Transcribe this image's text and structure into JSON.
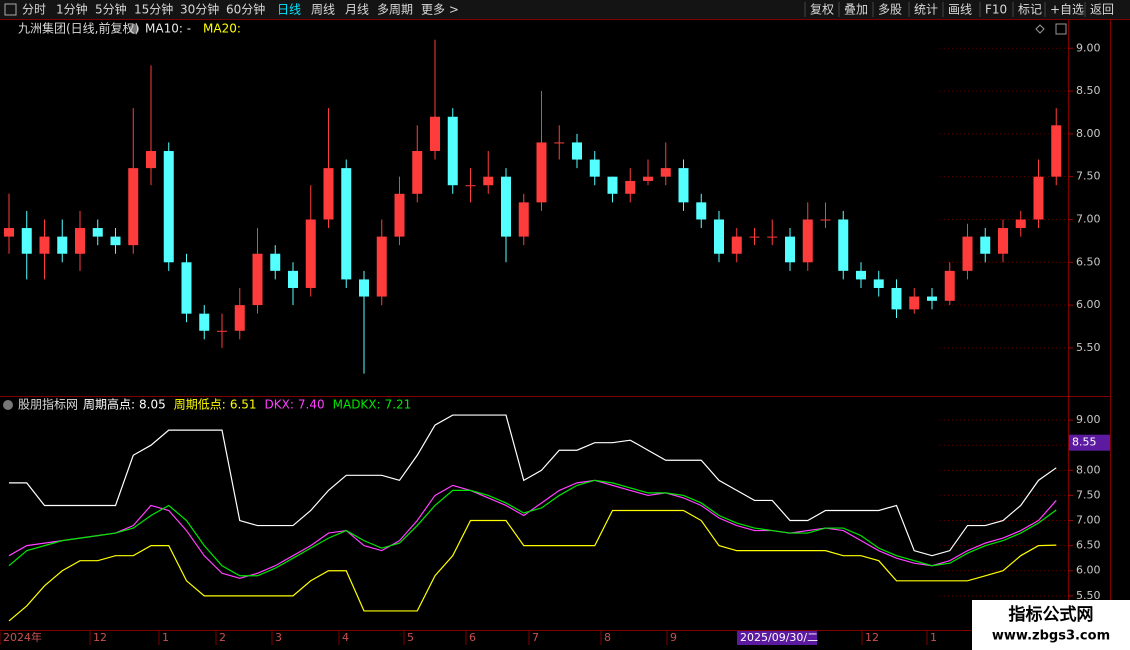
{
  "toolbar": {
    "left": [
      "分时",
      "1分钟",
      "5分钟",
      "15分钟",
      "30分钟",
      "60分钟",
      "日线",
      "周线",
      "月线",
      "多周期",
      "更多 >"
    ],
    "active": 6,
    "right": [
      "复权",
      "叠加",
      "多股",
      "统计",
      "画线",
      "F10",
      "标记",
      "+自选",
      "返回"
    ]
  },
  "chart_data": [
    {
      "type": "candlestick",
      "title": "九洲集团(日线,前复权)",
      "legend": [
        "MA10: -",
        "MA20:"
      ],
      "legend_colors": [
        "#e8e8e8",
        "#ffff00"
      ],
      "up_color": "#ff3c3c",
      "down_color": "#54ffff",
      "open": [
        6.8,
        6.9,
        6.6,
        6.8,
        6.6,
        6.9,
        6.8,
        6.7,
        7.6,
        7.8,
        6.5,
        5.9,
        5.7,
        5.7,
        6.0,
        6.6,
        6.4,
        6.2,
        7.0,
        7.6,
        6.3,
        6.1,
        6.8,
        7.3,
        7.8,
        8.2,
        7.4,
        7.4,
        7.5,
        6.8,
        7.2,
        7.9,
        7.9,
        7.7,
        7.5,
        7.3,
        7.45,
        7.5,
        7.6,
        7.2,
        7.0,
        6.6,
        6.8,
        6.8,
        6.8,
        6.5,
        7.0,
        7.0,
        6.4,
        6.3,
        6.2,
        5.95,
        6.1,
        6.05,
        6.4,
        6.8,
        6.6,
        6.9,
        7.0,
        7.5
      ],
      "high": [
        7.3,
        7.1,
        7.0,
        7.0,
        7.1,
        7.0,
        6.9,
        8.3,
        8.8,
        7.9,
        6.6,
        6.0,
        5.9,
        6.2,
        6.9,
        6.7,
        6.5,
        7.4,
        8.3,
        7.7,
        6.4,
        7.0,
        7.5,
        8.1,
        9.1,
        8.3,
        7.6,
        7.8,
        7.6,
        7.3,
        8.5,
        8.1,
        8.0,
        7.8,
        7.5,
        7.6,
        7.7,
        7.9,
        7.7,
        7.3,
        7.1,
        6.9,
        6.9,
        7.0,
        6.9,
        7.2,
        7.2,
        7.1,
        6.5,
        6.4,
        6.3,
        6.2,
        6.2,
        6.5,
        6.95,
        6.9,
        7.0,
        7.1,
        7.7,
        8.3
      ],
      "low": [
        6.6,
        6.3,
        6.3,
        6.5,
        6.4,
        6.7,
        6.6,
        6.6,
        7.4,
        6.4,
        5.8,
        5.6,
        5.5,
        5.6,
        5.9,
        6.3,
        6.0,
        6.1,
        6.9,
        6.2,
        5.2,
        6.0,
        6.7,
        7.2,
        7.7,
        7.3,
        7.2,
        7.3,
        6.5,
        6.7,
        7.1,
        7.7,
        7.6,
        7.4,
        7.2,
        7.2,
        7.4,
        7.4,
        7.1,
        6.9,
        6.5,
        6.5,
        6.7,
        6.7,
        6.4,
        6.4,
        6.9,
        6.3,
        6.2,
        6.1,
        5.85,
        5.9,
        5.95,
        6.0,
        6.3,
        6.5,
        6.5,
        6.8,
        6.9,
        7.4
      ],
      "close": [
        6.9,
        6.6,
        6.8,
        6.6,
        6.9,
        6.8,
        6.7,
        7.6,
        7.8,
        6.5,
        5.9,
        5.7,
        5.7,
        6.0,
        6.6,
        6.4,
        6.2,
        7.0,
        7.6,
        6.3,
        6.1,
        6.8,
        7.3,
        7.8,
        8.2,
        7.4,
        7.4,
        7.5,
        6.8,
        7.2,
        7.9,
        7.9,
        7.7,
        7.5,
        7.3,
        7.45,
        7.5,
        7.6,
        7.2,
        7.0,
        6.6,
        6.8,
        6.8,
        6.8,
        6.5,
        7.0,
        7.0,
        6.4,
        6.3,
        6.2,
        5.95,
        6.1,
        6.05,
        6.4,
        6.8,
        6.6,
        6.9,
        7.0,
        7.5,
        8.1
      ],
      "ylim": [
        4.95,
        9.33
      ],
      "yticks": [
        {
          "value": 9,
          "label": "9.00"
        },
        {
          "value": 8.5,
          "label": "8.50"
        },
        {
          "value": 8,
          "label": "8.00"
        },
        {
          "value": 7.5,
          "label": "7.50"
        },
        {
          "value": 7,
          "label": "7.00"
        },
        {
          "value": 6.5,
          "label": "6.50"
        },
        {
          "value": 6,
          "label": "6.00"
        },
        {
          "value": 5.5,
          "label": "5.50"
        }
      ]
    },
    {
      "type": "line",
      "title": "股朋指标网",
      "series": [
        {
          "name": "周期高点:",
          "last_label": "8.05",
          "color": "#ffffff",
          "values": [
            7.75,
            7.75,
            7.3,
            7.3,
            7.3,
            7.3,
            7.3,
            8.3,
            8.5,
            8.8,
            8.8,
            8.8,
            8.8,
            7.0,
            6.9,
            6.9,
            6.9,
            7.2,
            7.6,
            7.9,
            7.9,
            7.9,
            7.8,
            8.3,
            8.9,
            9.1,
            9.1,
            9.1,
            9.1,
            7.8,
            8.0,
            8.4,
            8.4,
            8.55,
            8.55,
            8.6,
            8.4,
            8.2,
            8.2,
            8.2,
            7.8,
            7.6,
            7.4,
            7.4,
            7.0,
            7.0,
            7.2,
            7.2,
            7.2,
            7.2,
            7.3,
            6.4,
            6.3,
            6.4,
            6.9,
            6.9,
            7.0,
            7.3,
            7.8,
            8.05
          ]
        },
        {
          "name": "周期低点:",
          "last_label": "6.51",
          "color": "#ffff00",
          "values": [
            5.0,
            5.3,
            5.7,
            6.0,
            6.2,
            6.2,
            6.3,
            6.3,
            6.5,
            6.5,
            5.8,
            5.5,
            5.5,
            5.5,
            5.5,
            5.5,
            5.5,
            5.8,
            6.0,
            6.0,
            5.2,
            5.2,
            5.2,
            5.2,
            5.9,
            6.3,
            7.0,
            7.0,
            7.0,
            6.5,
            6.5,
            6.5,
            6.5,
            6.5,
            7.2,
            7.2,
            7.2,
            7.2,
            7.2,
            7.0,
            6.5,
            6.4,
            6.4,
            6.4,
            6.4,
            6.4,
            6.4,
            6.3,
            6.3,
            6.2,
            5.8,
            5.8,
            5.8,
            5.8,
            5.8,
            5.9,
            6.0,
            6.3,
            6.5,
            6.51
          ]
        },
        {
          "name": "DKX:",
          "last_label": "7.40",
          "color": "#ff40ff",
          "values": [
            6.3,
            6.5,
            6.55,
            6.6,
            6.65,
            6.7,
            6.75,
            6.9,
            7.3,
            7.2,
            6.8,
            6.3,
            5.95,
            5.85,
            5.95,
            6.1,
            6.3,
            6.5,
            6.75,
            6.8,
            6.5,
            6.4,
            6.6,
            7.0,
            7.5,
            7.7,
            7.6,
            7.45,
            7.3,
            7.1,
            7.35,
            7.6,
            7.75,
            7.8,
            7.7,
            7.6,
            7.5,
            7.55,
            7.45,
            7.3,
            7.05,
            6.9,
            6.8,
            6.8,
            6.75,
            6.8,
            6.85,
            6.8,
            6.6,
            6.4,
            6.25,
            6.15,
            6.1,
            6.2,
            6.4,
            6.55,
            6.65,
            6.8,
            7.0,
            7.4
          ]
        },
        {
          "name": "MADKX:",
          "last_label": "7.21",
          "color": "#00e600",
          "values": [
            6.1,
            6.4,
            6.5,
            6.6,
            6.65,
            6.7,
            6.75,
            6.85,
            7.1,
            7.3,
            7.0,
            6.5,
            6.1,
            5.9,
            5.9,
            6.05,
            6.25,
            6.45,
            6.65,
            6.8,
            6.6,
            6.45,
            6.55,
            6.9,
            7.3,
            7.6,
            7.6,
            7.5,
            7.35,
            7.15,
            7.25,
            7.5,
            7.7,
            7.8,
            7.75,
            7.65,
            7.55,
            7.55,
            7.5,
            7.35,
            7.1,
            6.95,
            6.85,
            6.8,
            6.75,
            6.75,
            6.85,
            6.85,
            6.7,
            6.45,
            6.3,
            6.2,
            6.1,
            6.15,
            6.35,
            6.5,
            6.6,
            6.75,
            6.95,
            7.21
          ]
        }
      ],
      "ylim": [
        4.82,
        9.46
      ],
      "yticks": [
        {
          "value": 9,
          "label": "9.00"
        },
        {
          "value": 8.5,
          "label": "8.50"
        },
        {
          "value": 8,
          "label": "8.00"
        },
        {
          "value": 7.5,
          "label": "7.50"
        },
        {
          "value": 7,
          "label": "7.00"
        },
        {
          "value": 6.5,
          "label": "6.50"
        },
        {
          "value": 6,
          "label": "6.00"
        },
        {
          "value": 5.5,
          "label": "5.50"
        }
      ],
      "cursor_value": {
        "value": 8.55,
        "label": "8.55"
      }
    }
  ],
  "date_axis": {
    "labels": [
      "2024年",
      "12",
      "1",
      "2",
      "3",
      "4",
      "5",
      "6",
      "7",
      "8",
      "9",
      "12",
      "1"
    ],
    "cursor_date": "2025/09/30/二"
  },
  "watermark": {
    "title": "指标公式网",
    "url": "www.zbgs3.com"
  }
}
